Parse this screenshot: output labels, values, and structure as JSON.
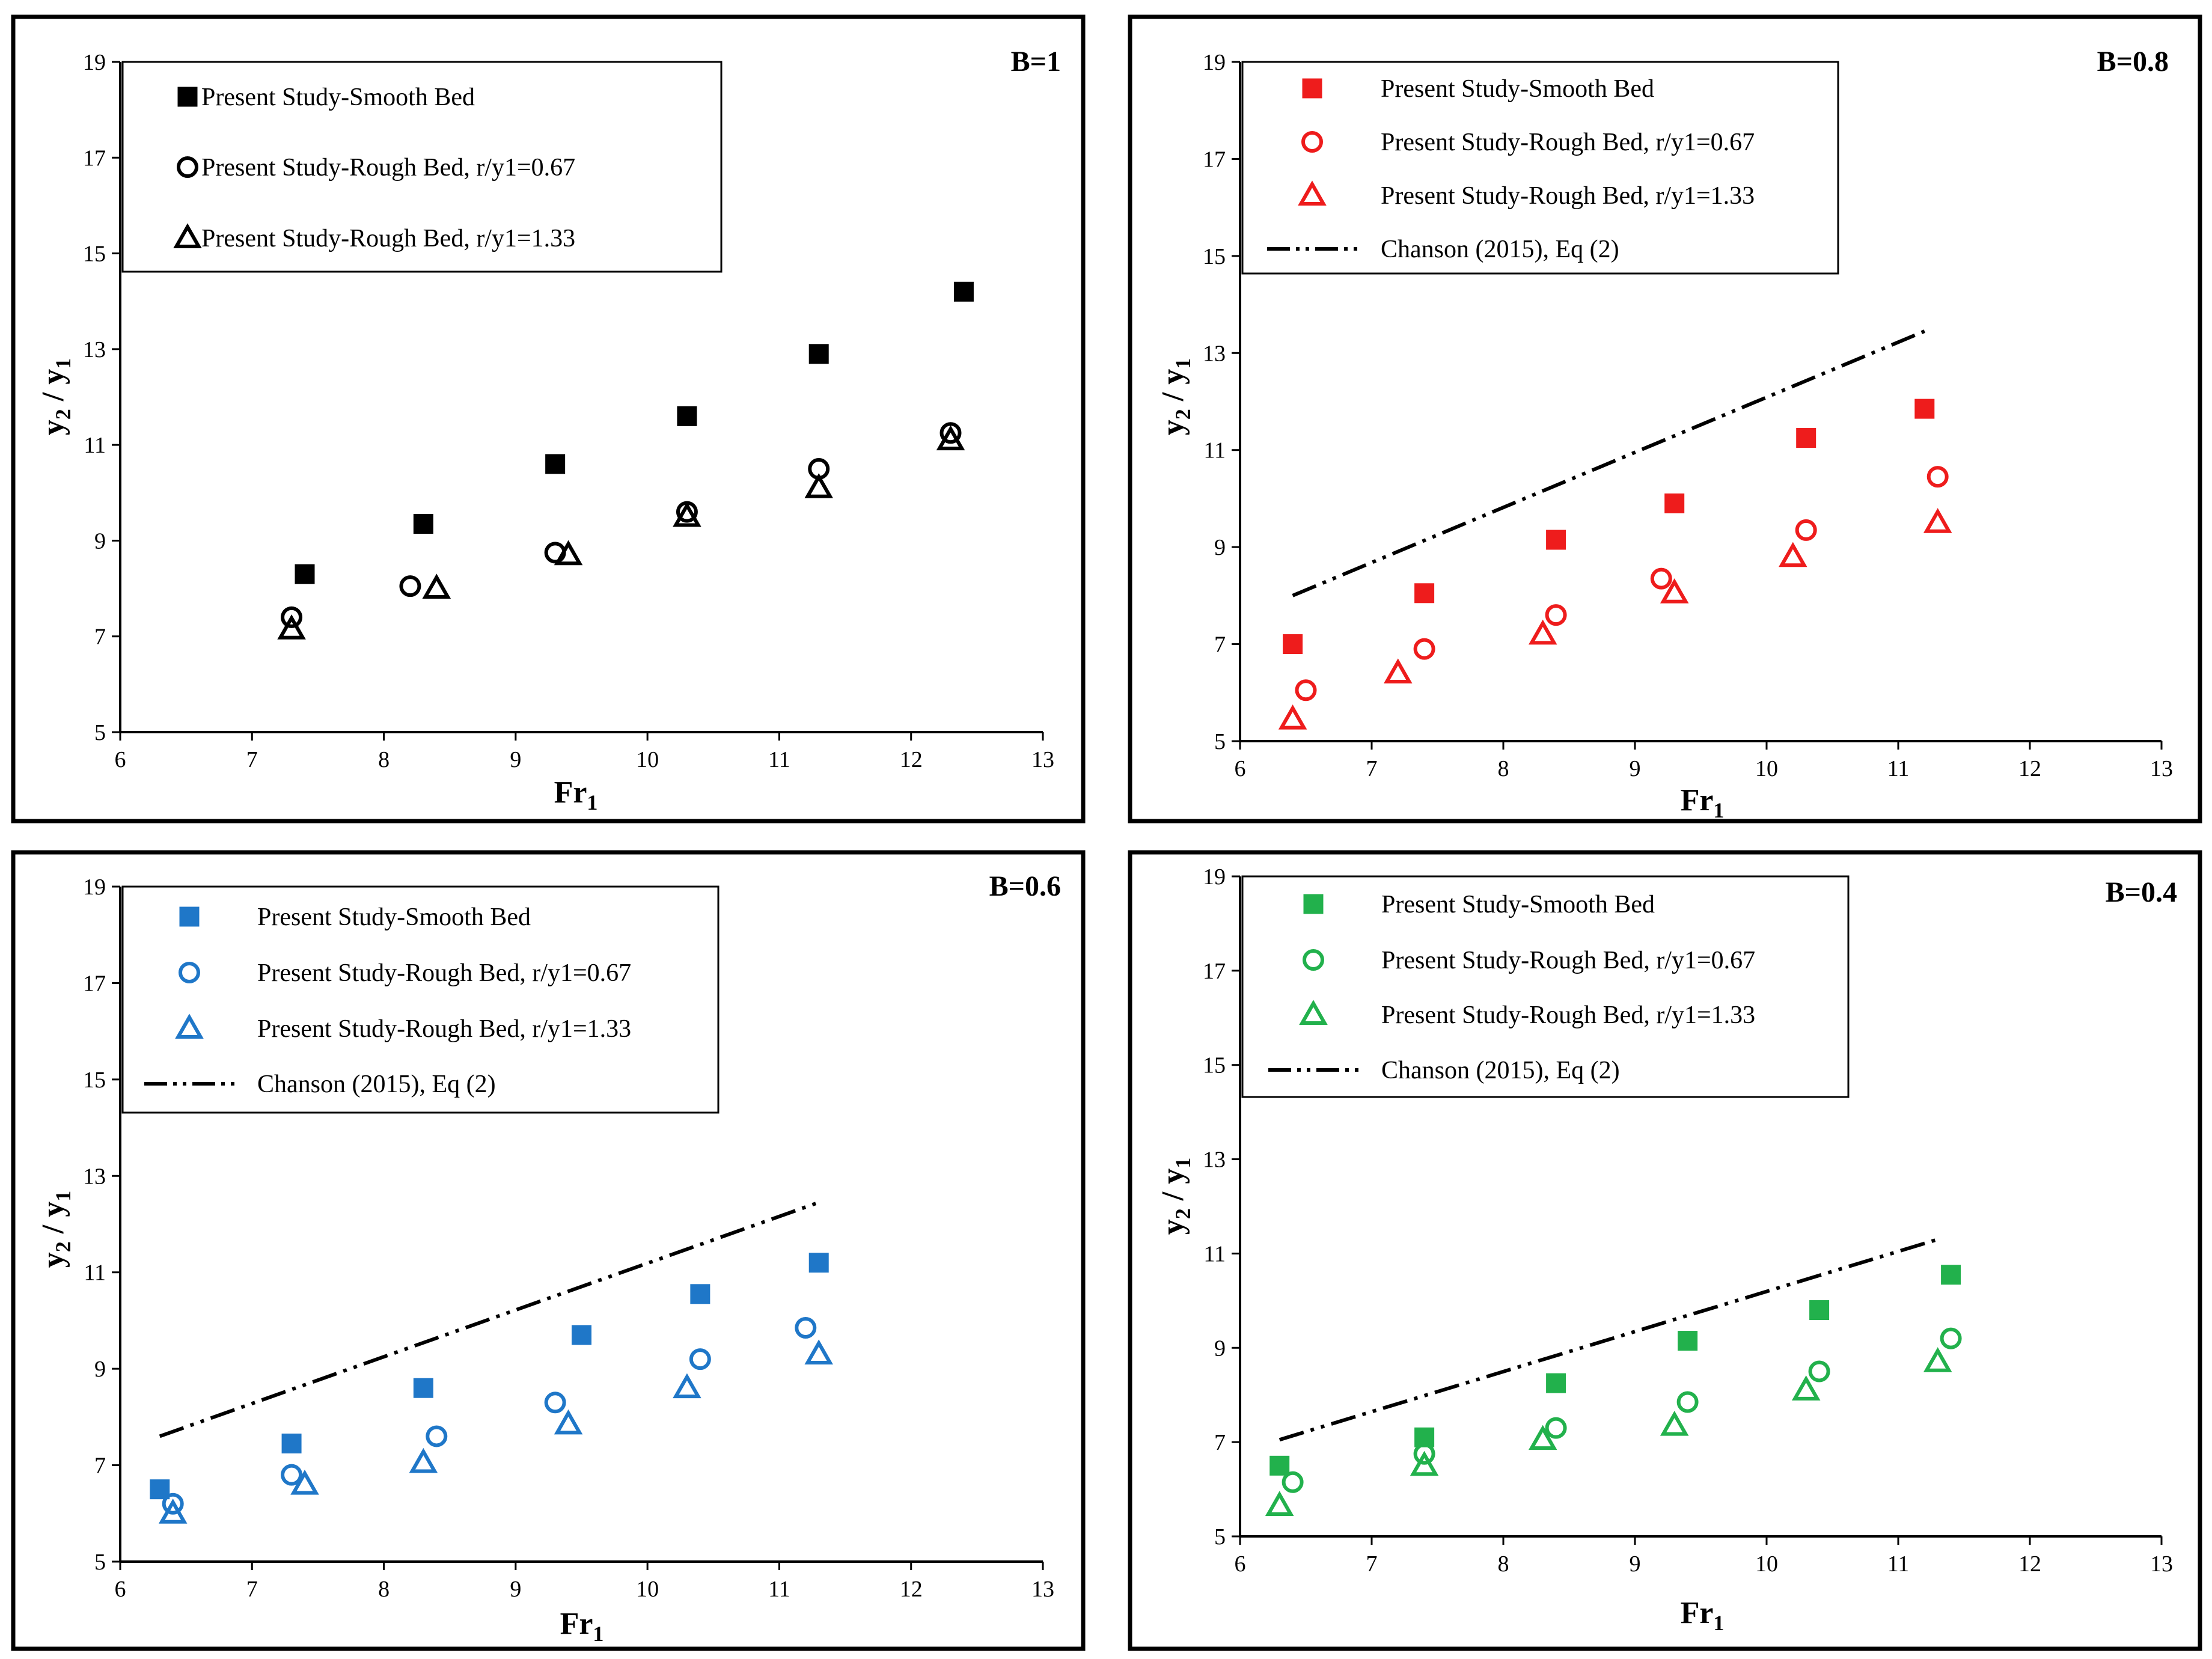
{
  "chart_data": [
    {
      "type": "scatter",
      "title": "B=1",
      "xlabel": {
        "main": "Fr",
        "sub": "1"
      },
      "ylabel": {
        "main": "y",
        "sub1": "2",
        "mid": " / y",
        "sub2": "1"
      },
      "xlim": [
        6,
        13
      ],
      "ylim": [
        5,
        19
      ],
      "xticks": [
        6,
        7,
        8,
        9,
        10,
        11,
        12,
        13
      ],
      "yticks": [
        5,
        7,
        9,
        11,
        13,
        15,
        17,
        19
      ],
      "color": "#000000",
      "grid": false,
      "legend_position": "top-left",
      "series": [
        {
          "name": "Present Study-Smooth Bed",
          "marker": "square",
          "x": [
            7.4,
            8.3,
            9.3,
            10.3,
            11.3,
            12.4
          ],
          "y": [
            8.3,
            9.35,
            10.6,
            11.6,
            12.9,
            14.2
          ]
        },
        {
          "name": "Present Study-Rough Bed, r/y1=0.67",
          "marker": "circle",
          "x": [
            7.3,
            8.2,
            9.3,
            10.3,
            11.3,
            12.3
          ],
          "y": [
            7.4,
            8.05,
            8.75,
            9.6,
            10.5,
            11.25
          ]
        },
        {
          "name": "Present Study-Rough Bed, r/y1=1.33",
          "marker": "triangle",
          "x": [
            7.3,
            8.4,
            9.4,
            10.3,
            11.3,
            12.3
          ],
          "y": [
            7.15,
            8.0,
            8.7,
            9.5,
            10.1,
            11.1
          ]
        }
      ]
    },
    {
      "type": "scatter",
      "title": "B=0.8",
      "xlabel": {
        "main": "Fr",
        "sub": "1"
      },
      "ylabel": {
        "main": "y",
        "sub1": "2",
        "mid": " / y",
        "sub2": "1"
      },
      "xlim": [
        6,
        13
      ],
      "ylim": [
        5,
        19
      ],
      "xticks": [
        6,
        7,
        8,
        9,
        10,
        11,
        12,
        13
      ],
      "yticks": [
        5,
        7,
        9,
        11,
        13,
        15,
        17,
        19
      ],
      "color": "#ee1c1c",
      "grid": false,
      "legend_position": "top-left",
      "series": [
        {
          "name": "Present Study-Smooth Bed",
          "marker": "square",
          "x": [
            6.4,
            7.4,
            8.4,
            9.3,
            10.3,
            11.2
          ],
          "y": [
            7.0,
            8.05,
            9.15,
            9.9,
            11.25,
            11.85
          ]
        },
        {
          "name": "Present Study-Rough Bed, r/y1=0.67",
          "marker": "circle",
          "x": [
            6.5,
            7.4,
            8.4,
            9.2,
            10.3,
            11.3
          ],
          "y": [
            6.05,
            6.9,
            7.6,
            8.35,
            9.35,
            10.45
          ]
        },
        {
          "name": "Present Study-Rough Bed, r/y1=1.33",
          "marker": "triangle",
          "x": [
            6.4,
            7.2,
            8.3,
            9.3,
            10.2,
            11.3
          ],
          "y": [
            5.45,
            6.4,
            7.2,
            8.05,
            8.8,
            9.5
          ]
        },
        {
          "name": "Chanson (2015), Eq (2)",
          "marker": "dashdot",
          "x": [
            6.4,
            11.2
          ],
          "y": [
            8.0,
            13.45
          ]
        }
      ]
    },
    {
      "type": "scatter",
      "title": "B=0.6",
      "xlabel": {
        "main": "Fr",
        "sub": "1"
      },
      "ylabel": {
        "main": "y",
        "sub1": "2",
        "mid": " / y",
        "sub2": "1"
      },
      "xlim": [
        6,
        13
      ],
      "ylim": [
        5,
        19
      ],
      "xticks": [
        6,
        7,
        8,
        9,
        10,
        11,
        12,
        13
      ],
      "yticks": [
        5,
        7,
        9,
        11,
        13,
        15,
        17,
        19
      ],
      "color": "#1f77c8",
      "grid": false,
      "legend_position": "top-left",
      "series": [
        {
          "name": "Present Study-Smooth Bed",
          "marker": "square",
          "x": [
            6.3,
            7.3,
            8.3,
            9.5,
            10.4,
            11.3
          ],
          "y": [
            6.5,
            7.45,
            8.6,
            9.7,
            10.55,
            11.2
          ]
        },
        {
          "name": "Present Study-Rough Bed, r/y1=0.67",
          "marker": "circle",
          "x": [
            6.4,
            7.3,
            8.4,
            9.3,
            10.4,
            11.2
          ],
          "y": [
            6.2,
            6.8,
            7.6,
            8.3,
            9.2,
            9.85
          ]
        },
        {
          "name": "Present Study-Rough Bed, r/y1=1.33",
          "marker": "triangle",
          "x": [
            6.4,
            7.4,
            8.3,
            9.4,
            10.3,
            11.3
          ],
          "y": [
            6.0,
            6.6,
            7.05,
            7.85,
            8.6,
            9.3
          ]
        },
        {
          "name": "Chanson (2015), Eq (2)",
          "marker": "dashdot",
          "x": [
            6.3,
            11.3
          ],
          "y": [
            7.6,
            12.45
          ]
        }
      ]
    },
    {
      "type": "scatter",
      "title": "B=0.4",
      "xlabel": {
        "main": "Fr",
        "sub": "1"
      },
      "ylabel": {
        "main": "y",
        "sub1": "2",
        "mid": " / y",
        "sub2": "1"
      },
      "xlim": [
        6,
        13
      ],
      "ylim": [
        5,
        19
      ],
      "xticks": [
        6,
        7,
        8,
        9,
        10,
        11,
        12,
        13
      ],
      "yticks": [
        5,
        7,
        9,
        11,
        13,
        15,
        17,
        19
      ],
      "color": "#22b14c",
      "grid": false,
      "legend_position": "top-left",
      "series": [
        {
          "name": "Present Study-Smooth Bed",
          "marker": "square",
          "x": [
            6.3,
            7.4,
            8.4,
            9.4,
            10.4,
            11.4
          ],
          "y": [
            6.5,
            7.1,
            8.25,
            9.15,
            9.8,
            10.55
          ]
        },
        {
          "name": "Present Study-Rough Bed, r/y1=0.67",
          "marker": "circle",
          "x": [
            6.4,
            7.4,
            8.4,
            9.4,
            10.4,
            11.4
          ],
          "y": [
            6.15,
            6.75,
            7.3,
            7.85,
            8.5,
            9.2
          ]
        },
        {
          "name": "Present Study-Rough Bed, r/y1=1.33",
          "marker": "triangle",
          "x": [
            6.3,
            7.4,
            8.3,
            9.3,
            10.3,
            11.3
          ],
          "y": [
            5.65,
            6.5,
            7.05,
            7.35,
            8.1,
            8.7
          ]
        },
        {
          "name": "Chanson (2015), Eq (2)",
          "marker": "dashdot",
          "x": [
            6.3,
            11.3
          ],
          "y": [
            7.05,
            11.3
          ]
        }
      ]
    }
  ]
}
